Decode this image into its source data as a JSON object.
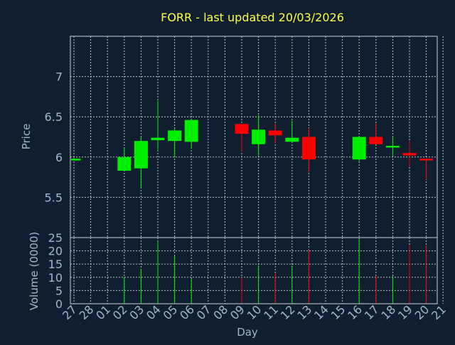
{
  "chart_data": {
    "type": "candlestick",
    "title": "FORR - last updated 20/03/2026",
    "xlabel": "Day",
    "price_panel": {
      "ylabel": "Price",
      "ylim": [
        5.0,
        7.5
      ],
      "yticks": [
        5.5,
        6,
        6.5,
        7
      ],
      "ytick_labels": [
        "5.5",
        "6",
        "6.5",
        "7"
      ]
    },
    "volume_panel": {
      "ylabel": "Volume (0000)",
      "ylim": [
        0,
        25
      ],
      "yticks": [
        0,
        5,
        10,
        15,
        20,
        25
      ],
      "ytick_labels": [
        "0",
        "5",
        "10",
        "15",
        "20",
        "25"
      ]
    },
    "x_tick_labels": [
      "27",
      "28",
      "01",
      "02",
      "03",
      "04",
      "05",
      "06",
      "07",
      "08",
      "09",
      "10",
      "11",
      "12",
      "13",
      "14",
      "15",
      "16",
      "17",
      "18",
      "19",
      "20",
      "21"
    ],
    "grid": true,
    "colors": {
      "up": "#00ee00",
      "down": "#ff0000",
      "background": "#0f1f2f",
      "title": "#ffff44",
      "text": "#a2b6d2"
    },
    "candles": [
      {
        "day": "27",
        "open": 5.97,
        "high": 5.99,
        "low": 5.97,
        "close": 5.98,
        "volume": 0.2
      },
      {
        "day": "02",
        "open": 5.83,
        "high": 6.11,
        "low": 5.83,
        "close": 6.0,
        "volume": 10
      },
      {
        "day": "03",
        "open": 5.86,
        "high": 6.25,
        "low": 5.61,
        "close": 6.2,
        "volume": 13
      },
      {
        "day": "04",
        "open": 6.21,
        "high": 6.7,
        "low": 6.08,
        "close": 6.24,
        "volume": 23.5
      },
      {
        "day": "05",
        "open": 6.2,
        "high": 6.35,
        "low": 6.0,
        "close": 6.33,
        "volume": 18
      },
      {
        "day": "06",
        "open": 6.19,
        "high": 6.47,
        "low": 6.1,
        "close": 6.46,
        "volume": 9.5
      },
      {
        "day": "09",
        "open": 6.41,
        "high": 6.41,
        "low": 6.07,
        "close": 6.29,
        "volume": 10
      },
      {
        "day": "10",
        "open": 6.16,
        "high": 6.52,
        "low": 6.02,
        "close": 6.34,
        "volume": 14.5
      },
      {
        "day": "11",
        "open": 6.33,
        "high": 6.42,
        "low": 6.17,
        "close": 6.27,
        "volume": 11.5
      },
      {
        "day": "12",
        "open": 6.19,
        "high": 6.45,
        "low": 6.18,
        "close": 6.24,
        "volume": 14.5
      },
      {
        "day": "13",
        "open": 6.25,
        "high": 6.36,
        "low": 5.81,
        "close": 5.97,
        "volume": 20.5
      },
      {
        "day": "16",
        "open": 5.97,
        "high": 6.26,
        "low": 5.94,
        "close": 6.25,
        "volume": 24.5
      },
      {
        "day": "17",
        "open": 6.25,
        "high": 6.42,
        "low": 6.16,
        "close": 6.16,
        "volume": 10.5
      },
      {
        "day": "18",
        "open": 6.12,
        "high": 6.25,
        "low": 6.01,
        "close": 6.14,
        "volume": 10.5
      },
      {
        "day": "19",
        "open": 6.05,
        "high": 6.2,
        "low": 5.88,
        "close": 6.02,
        "volume": 22
      },
      {
        "day": "20",
        "open": 5.98,
        "high": 5.98,
        "low": 5.72,
        "close": 5.97,
        "volume": 22
      }
    ]
  }
}
